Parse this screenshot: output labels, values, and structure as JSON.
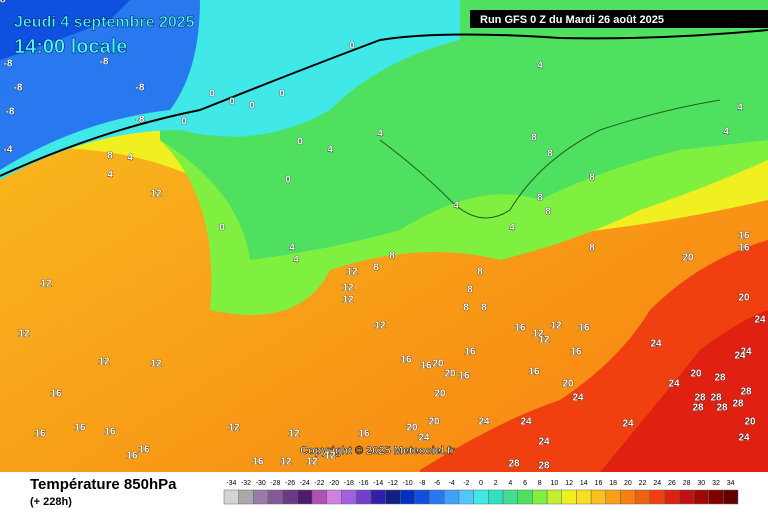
{
  "header": {
    "title": "Jeudi 4 septembre 2025",
    "time": "14:00 locale",
    "run": "Run GFS 0 Z du Mardi 26 août 2025"
  },
  "copyright": "Copyright © 2025 Meteociel.fr",
  "footer": {
    "title": "Température 850hPa",
    "subtitle": "(+ 228h)"
  },
  "legend": {
    "ticks": [
      -34,
      -32,
      -30,
      -28,
      -26,
      -24,
      -22,
      -20,
      -18,
      -16,
      -14,
      -12,
      -10,
      -8,
      -6,
      -4,
      -2,
      0,
      2,
      4,
      6,
      8,
      10,
      12,
      14,
      16,
      18,
      20,
      22,
      24,
      26,
      28,
      30,
      32,
      34
    ],
    "colors": [
      "#d4d4d4",
      "#a9a9a9",
      "#9c7aa6",
      "#845a96",
      "#6a3a84",
      "#4f1a6c",
      "#b050b0",
      "#d080e0",
      "#a060e0",
      "#7040c8",
      "#3020a8",
      "#102080",
      "#0030c0",
      "#1050e0",
      "#2878f0",
      "#40a0ff",
      "#50c8ff",
      "#40e8e8",
      "#30e0c0",
      "#40e090",
      "#50e060",
      "#80f040",
      "#c0f030",
      "#f0f020",
      "#f8e020",
      "#f8c020",
      "#f8a018",
      "#f88010",
      "#f06010",
      "#f04010",
      "#e02010",
      "#c01010",
      "#a00808",
      "#800000",
      "#600000"
    ]
  },
  "map": {
    "labels": [
      -8,
      -8,
      -8,
      -8,
      -8,
      -8,
      -4,
      0,
      0,
      0,
      0,
      0,
      0,
      0,
      0,
      0,
      4,
      4,
      4,
      4,
      4,
      4,
      4,
      4,
      4,
      4,
      4,
      8,
      8,
      8,
      8,
      8,
      8,
      8,
      8,
      8,
      8,
      8,
      8,
      8,
      12,
      12,
      12,
      12,
      12,
      12,
      12,
      12,
      12,
      12,
      12,
      12,
      12,
      12,
      16,
      12,
      12,
      16,
      12,
      16,
      16,
      16,
      16,
      16,
      16,
      16,
      16,
      16,
      16,
      16,
      16,
      16,
      16,
      16,
      16,
      20,
      20,
      20,
      20,
      20,
      20,
      20,
      20,
      24,
      24,
      24,
      24,
      24,
      24,
      24,
      24,
      24,
      24,
      20,
      28,
      28,
      28,
      28,
      28,
      28,
      28,
      20,
      24,
      24,
      28,
      28,
      28
    ]
  }
}
